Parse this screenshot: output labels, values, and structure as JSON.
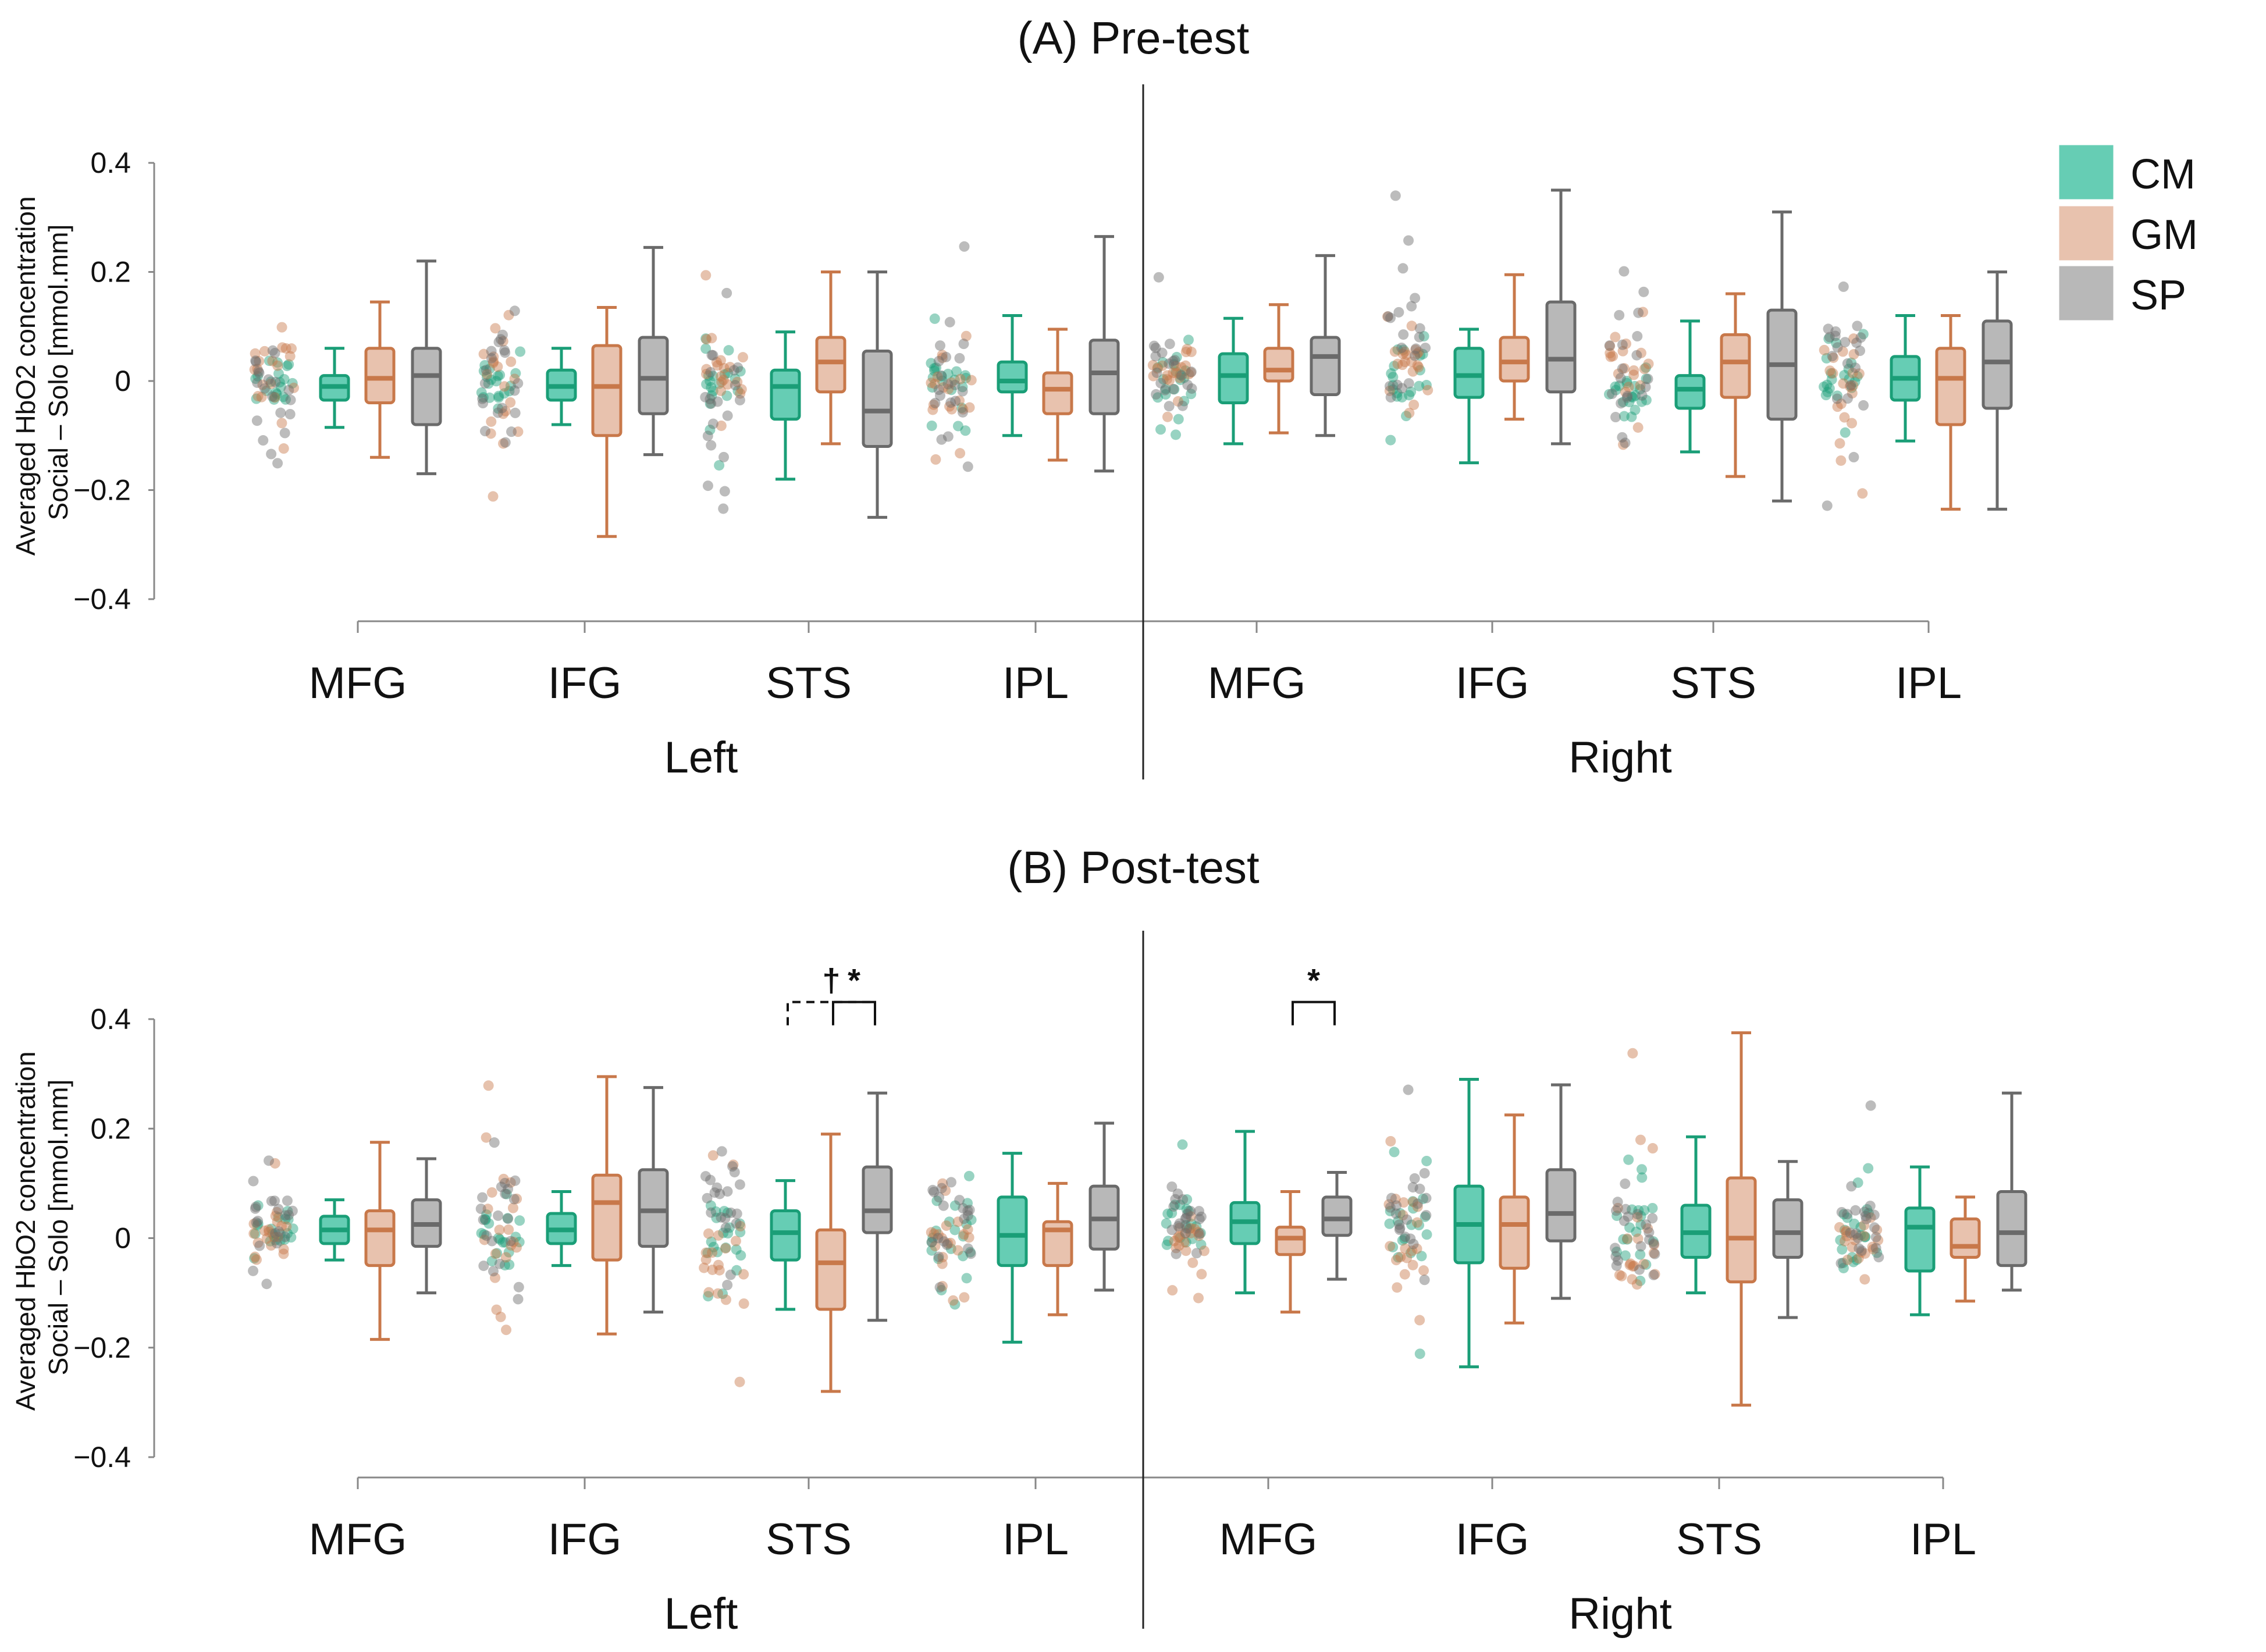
{
  "legend": [
    {
      "name": "CM",
      "color": "#1a9e77",
      "fill": "#66cdb4"
    },
    {
      "name": "GM",
      "color": "#c8784a",
      "fill": "#e8c2ae"
    },
    {
      "name": "SP",
      "color": "#6a6a6a",
      "fill": "#b8b8b8"
    }
  ],
  "chart_data": [
    {
      "type": "boxplot",
      "title": "(A) Pre-test",
      "ylabel_line1": "Averaged HbO2 concentration",
      "ylabel_line2": "Social – Solo [mmol.mm]",
      "ylim": [
        -0.4,
        0.4
      ],
      "yticks": [
        {
          "value": 0.4,
          "label": "0.4"
        },
        {
          "value": 0.2,
          "label": "0.2"
        },
        {
          "value": 0,
          "label": "0"
        },
        {
          "value": -0.2,
          "label": "−0.2"
        },
        {
          "value": -0.4,
          "label": "−0.4"
        }
      ],
      "hemispheres": [
        "Left",
        "Right"
      ],
      "regions": [
        "MFG",
        "IFG",
        "STS",
        "IPL",
        "MFG",
        "IFG",
        "STS",
        "IPL"
      ],
      "groups": [
        [
          {
            "group": "CM",
            "min": -0.085,
            "q1": -0.035,
            "median": -0.01,
            "q3": 0.01,
            "max": 0.06
          },
          {
            "group": "GM",
            "min": -0.14,
            "q1": -0.04,
            "median": 0.005,
            "q3": 0.06,
            "max": 0.145
          },
          {
            "group": "SP",
            "min": -0.17,
            "q1": -0.08,
            "median": 0.01,
            "q3": 0.06,
            "max": 0.22
          }
        ],
        [
          {
            "group": "CM",
            "min": -0.08,
            "q1": -0.035,
            "median": -0.01,
            "q3": 0.02,
            "max": 0.06
          },
          {
            "group": "GM",
            "min": -0.285,
            "q1": -0.1,
            "median": -0.01,
            "q3": 0.065,
            "max": 0.135
          },
          {
            "group": "SP",
            "min": -0.135,
            "q1": -0.06,
            "median": 0.005,
            "q3": 0.08,
            "max": 0.245
          }
        ],
        [
          {
            "group": "CM",
            "min": -0.18,
            "q1": -0.07,
            "median": -0.01,
            "q3": 0.02,
            "max": 0.09
          },
          {
            "group": "GM",
            "min": -0.115,
            "q1": -0.02,
            "median": 0.035,
            "q3": 0.08,
            "max": 0.2
          },
          {
            "group": "SP",
            "min": -0.25,
            "q1": -0.12,
            "median": -0.055,
            "q3": 0.055,
            "max": 0.2
          }
        ],
        [
          {
            "group": "CM",
            "min": -0.1,
            "q1": -0.02,
            "median": 0.0,
            "q3": 0.035,
            "max": 0.12
          },
          {
            "group": "GM",
            "min": -0.145,
            "q1": -0.06,
            "median": -0.015,
            "q3": 0.015,
            "max": 0.095
          },
          {
            "group": "SP",
            "min": -0.165,
            "q1": -0.06,
            "median": 0.015,
            "q3": 0.075,
            "max": 0.265
          }
        ],
        [
          {
            "group": "CM",
            "min": -0.115,
            "q1": -0.04,
            "median": 0.01,
            "q3": 0.05,
            "max": 0.115
          },
          {
            "group": "GM",
            "min": -0.095,
            "q1": 0.0,
            "median": 0.02,
            "q3": 0.06,
            "max": 0.14
          },
          {
            "group": "SP",
            "min": -0.1,
            "q1": -0.025,
            "median": 0.045,
            "q3": 0.08,
            "max": 0.23
          }
        ],
        [
          {
            "group": "CM",
            "min": -0.15,
            "q1": -0.03,
            "median": 0.01,
            "q3": 0.06,
            "max": 0.095
          },
          {
            "group": "GM",
            "min": -0.07,
            "q1": 0.0,
            "median": 0.035,
            "q3": 0.08,
            "max": 0.195
          },
          {
            "group": "SP",
            "min": -0.115,
            "q1": -0.02,
            "median": 0.04,
            "q3": 0.145,
            "max": 0.35
          }
        ],
        [
          {
            "group": "CM",
            "min": -0.13,
            "q1": -0.05,
            "median": -0.015,
            "q3": 0.01,
            "max": 0.11
          },
          {
            "group": "GM",
            "min": -0.175,
            "q1": -0.03,
            "median": 0.035,
            "q3": 0.085,
            "max": 0.16
          },
          {
            "group": "SP",
            "min": -0.22,
            "q1": -0.07,
            "median": 0.03,
            "q3": 0.13,
            "max": 0.31
          }
        ],
        [
          {
            "group": "CM",
            "min": -0.11,
            "q1": -0.035,
            "median": 0.005,
            "q3": 0.045,
            "max": 0.12
          },
          {
            "group": "GM",
            "min": -0.235,
            "q1": -0.08,
            "median": 0.005,
            "q3": 0.06,
            "max": 0.12
          },
          {
            "group": "SP",
            "min": -0.235,
            "q1": -0.05,
            "median": 0.035,
            "q3": 0.11,
            "max": 0.2
          }
        ]
      ],
      "annotations": []
    },
    {
      "type": "boxplot",
      "title": "(B) Post-test",
      "ylabel_line1": "Averaged HbO2 concentration",
      "ylabel_line2": "Social – Solo [mmol.mm]",
      "ylim": [
        -0.4,
        0.4
      ],
      "yticks": [
        {
          "value": 0.4,
          "label": "0.4"
        },
        {
          "value": 0.2,
          "label": "0.2"
        },
        {
          "value": 0,
          "label": "0"
        },
        {
          "value": -0.2,
          "label": "−0.2"
        },
        {
          "value": -0.4,
          "label": "−0.4"
        }
      ],
      "hemispheres": [
        "Left",
        "Right"
      ],
      "regions": [
        "MFG",
        "IFG",
        "STS",
        "IPL",
        "MFG",
        "IFG",
        "STS",
        "IPL"
      ],
      "groups": [
        [
          {
            "group": "CM",
            "min": -0.04,
            "q1": -0.01,
            "median": 0.015,
            "q3": 0.04,
            "max": 0.07
          },
          {
            "group": "GM",
            "min": -0.185,
            "q1": -0.05,
            "median": 0.015,
            "q3": 0.05,
            "max": 0.175
          },
          {
            "group": "SP",
            "min": -0.1,
            "q1": -0.015,
            "median": 0.025,
            "q3": 0.07,
            "max": 0.145
          }
        ],
        [
          {
            "group": "CM",
            "min": -0.05,
            "q1": -0.01,
            "median": 0.015,
            "q3": 0.045,
            "max": 0.085
          },
          {
            "group": "GM",
            "min": -0.175,
            "q1": -0.04,
            "median": 0.065,
            "q3": 0.115,
            "max": 0.295
          },
          {
            "group": "SP",
            "min": -0.135,
            "q1": -0.015,
            "median": 0.05,
            "q3": 0.125,
            "max": 0.275
          }
        ],
        [
          {
            "group": "CM",
            "min": -0.13,
            "q1": -0.04,
            "median": 0.01,
            "q3": 0.05,
            "max": 0.105
          },
          {
            "group": "GM",
            "min": -0.28,
            "q1": -0.13,
            "median": -0.045,
            "q3": 0.015,
            "max": 0.19
          },
          {
            "group": "SP",
            "min": -0.15,
            "q1": 0.01,
            "median": 0.05,
            "q3": 0.13,
            "max": 0.265
          }
        ],
        [
          {
            "group": "CM",
            "min": -0.19,
            "q1": -0.05,
            "median": 0.005,
            "q3": 0.075,
            "max": 0.155
          },
          {
            "group": "GM",
            "min": -0.14,
            "q1": -0.05,
            "median": 0.015,
            "q3": 0.03,
            "max": 0.1
          },
          {
            "group": "SP",
            "min": -0.095,
            "q1": -0.02,
            "median": 0.035,
            "q3": 0.095,
            "max": 0.21
          }
        ],
        [
          {
            "group": "CM",
            "min": -0.1,
            "q1": -0.01,
            "median": 0.03,
            "q3": 0.065,
            "max": 0.195
          },
          {
            "group": "GM",
            "min": -0.135,
            "q1": -0.03,
            "median": 0.0,
            "q3": 0.02,
            "max": 0.085
          },
          {
            "group": "SP",
            "min": -0.075,
            "q1": 0.005,
            "median": 0.035,
            "q3": 0.075,
            "max": 0.12
          }
        ],
        [
          {
            "group": "CM",
            "min": -0.235,
            "q1": -0.045,
            "median": 0.025,
            "q3": 0.095,
            "max": 0.29
          },
          {
            "group": "GM",
            "min": -0.155,
            "q1": -0.055,
            "median": 0.025,
            "q3": 0.075,
            "max": 0.225
          },
          {
            "group": "SP",
            "min": -0.11,
            "q1": -0.005,
            "median": 0.045,
            "q3": 0.125,
            "max": 0.28
          }
        ],
        [
          {
            "group": "CM",
            "min": -0.1,
            "q1": -0.035,
            "median": 0.01,
            "q3": 0.06,
            "max": 0.185
          },
          {
            "group": "GM",
            "min": -0.305,
            "q1": -0.08,
            "median": 0.0,
            "q3": 0.11,
            "max": 0.375
          },
          {
            "group": "SP",
            "min": -0.145,
            "q1": -0.035,
            "median": 0.01,
            "q3": 0.07,
            "max": 0.14
          }
        ],
        [
          {
            "group": "CM",
            "min": -0.14,
            "q1": -0.06,
            "median": 0.02,
            "q3": 0.055,
            "max": 0.13
          },
          {
            "group": "GM",
            "min": -0.115,
            "q1": -0.035,
            "median": -0.015,
            "q3": 0.035,
            "max": 0.075
          },
          {
            "group": "SP",
            "min": -0.095,
            "q1": -0.05,
            "median": 0.01,
            "q3": 0.085,
            "max": 0.265
          }
        ]
      ],
      "annotations": [
        {
          "region_index": 2,
          "between": [
            "CM",
            "SP"
          ],
          "line": "dashed",
          "symbol": "†"
        },
        {
          "region_index": 2,
          "between": [
            "GM",
            "SP"
          ],
          "line": "solid",
          "symbol": "*"
        },
        {
          "region_index": 4,
          "between": [
            "GM",
            "SP"
          ],
          "line": "solid",
          "symbol": "*"
        }
      ]
    }
  ]
}
